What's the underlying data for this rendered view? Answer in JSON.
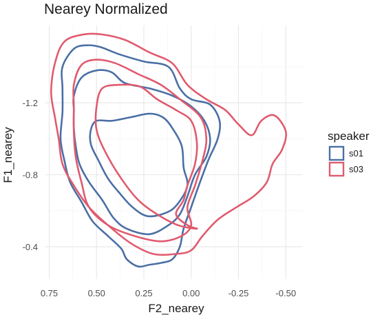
{
  "chart_data": {
    "type": "contour",
    "title": "Nearey Normalized",
    "xlabel": "F2_nearey",
    "ylabel": "F1_nearey",
    "x_reversed": true,
    "y_reversed": true,
    "xlim": [
      0.77,
      -0.59
    ],
    "ylim": [
      -1.63,
      -0.22
    ],
    "x_ticks": [
      0.75,
      0.5,
      0.25,
      0.0,
      -0.25,
      -0.5
    ],
    "x_tick_labels": [
      "0.75",
      "0.50",
      "0.25",
      "0.00",
      "-0.25",
      "-0.50"
    ],
    "y_ticks": [
      -1.2,
      -0.8,
      -0.4
    ],
    "y_tick_labels": [
      "-1.2",
      "-0.8",
      "-0.4"
    ],
    "grid": true,
    "legend": {
      "title": "speaker",
      "position": "right",
      "entries": [
        {
          "label": "s01",
          "color": "#4a6fa5"
        },
        {
          "label": "s03",
          "color": "#e05a6e"
        }
      ]
    },
    "series": [
      {
        "name": "s01",
        "color": "#4a6fa5",
        "contours": [
          [
            [
              0.53,
              -1.05
            ],
            [
              0.5,
              -1.1
            ],
            [
              0.42,
              -1.1
            ],
            [
              0.32,
              -1.12
            ],
            [
              0.22,
              -1.14
            ],
            [
              0.15,
              -1.12
            ],
            [
              0.1,
              -1.06
            ],
            [
              0.05,
              -0.96
            ],
            [
              0.04,
              -0.84
            ],
            [
              0.02,
              -0.74
            ],
            [
              0.07,
              -0.64
            ],
            [
              0.13,
              -0.59
            ],
            [
              0.23,
              -0.57
            ],
            [
              0.31,
              -0.62
            ],
            [
              0.38,
              -0.7
            ],
            [
              0.44,
              -0.78
            ],
            [
              0.49,
              -0.88
            ],
            [
              0.53,
              -0.97
            ]
          ],
          [
            [
              0.62,
              -1.24
            ],
            [
              0.58,
              -1.34
            ],
            [
              0.5,
              -1.38
            ],
            [
              0.42,
              -1.37
            ],
            [
              0.35,
              -1.31
            ],
            [
              0.22,
              -1.28
            ],
            [
              0.1,
              -1.24
            ],
            [
              0.0,
              -1.18
            ],
            [
              -0.07,
              -1.1
            ],
            [
              -0.1,
              -1.0
            ],
            [
              -0.08,
              -0.9
            ],
            [
              -0.02,
              -0.8
            ],
            [
              0.02,
              -0.68
            ],
            [
              0.06,
              -0.58
            ],
            [
              0.12,
              -0.52
            ],
            [
              0.22,
              -0.47
            ],
            [
              0.34,
              -0.5
            ],
            [
              0.41,
              -0.56
            ],
            [
              0.47,
              -0.66
            ],
            [
              0.54,
              -0.76
            ],
            [
              0.59,
              -0.86
            ],
            [
              0.61,
              -0.96
            ],
            [
              0.62,
              -1.06
            ],
            [
              0.62,
              -1.16
            ]
          ],
          [
            [
              0.68,
              -1.4
            ],
            [
              0.62,
              -1.5
            ],
            [
              0.55,
              -1.52
            ],
            [
              0.48,
              -1.51
            ],
            [
              0.38,
              -1.47
            ],
            [
              0.25,
              -1.43
            ],
            [
              0.12,
              -1.4
            ],
            [
              0.06,
              -1.28
            ],
            [
              0.0,
              -1.22
            ],
            [
              -0.1,
              -1.19
            ],
            [
              -0.15,
              -1.1
            ],
            [
              -0.14,
              -1.0
            ],
            [
              -0.09,
              -0.88
            ],
            [
              -0.04,
              -0.74
            ],
            [
              0.0,
              -0.62
            ],
            [
              0.04,
              -0.5
            ],
            [
              0.06,
              -0.4
            ],
            [
              0.1,
              -0.33
            ],
            [
              0.16,
              -0.31
            ],
            [
              0.22,
              -0.3
            ],
            [
              0.28,
              -0.29
            ],
            [
              0.34,
              -0.33
            ],
            [
              0.37,
              -0.39
            ],
            [
              0.44,
              -0.46
            ],
            [
              0.52,
              -0.54
            ],
            [
              0.58,
              -0.65
            ],
            [
              0.64,
              -0.76
            ],
            [
              0.67,
              -0.88
            ],
            [
              0.69,
              -1.0
            ],
            [
              0.68,
              -1.15
            ],
            [
              0.68,
              -1.28
            ]
          ]
        ]
      },
      {
        "name": "s03",
        "color": "#e05a6e",
        "contours": [
          [
            [
              0.5,
              -1.18
            ],
            [
              0.47,
              -1.28
            ],
            [
              0.38,
              -1.3
            ],
            [
              0.27,
              -1.29
            ],
            [
              0.18,
              -1.22
            ],
            [
              0.08,
              -1.16
            ],
            [
              0.0,
              -1.1
            ],
            [
              -0.03,
              -0.98
            ],
            [
              -0.02,
              -0.86
            ],
            [
              0.02,
              -0.74
            ],
            [
              0.04,
              -0.66
            ],
            [
              0.08,
              -0.58
            ],
            [
              0.02,
              -0.52
            ],
            [
              -0.03,
              -0.5
            ],
            [
              0.07,
              -0.52
            ],
            [
              0.18,
              -0.58
            ],
            [
              0.28,
              -0.66
            ],
            [
              0.37,
              -0.78
            ],
            [
              0.45,
              -0.92
            ],
            [
              0.5,
              -1.05
            ]
          ],
          [
            [
              0.62,
              -1.3
            ],
            [
              0.58,
              -1.41
            ],
            [
              0.5,
              -1.44
            ],
            [
              0.4,
              -1.42
            ],
            [
              0.28,
              -1.36
            ],
            [
              0.16,
              -1.3
            ],
            [
              0.06,
              -1.22
            ],
            [
              -0.05,
              -1.12
            ],
            [
              -0.08,
              -1.0
            ],
            [
              -0.06,
              -0.88
            ],
            [
              -0.02,
              -0.74
            ],
            [
              0.02,
              -0.62
            ],
            [
              0.0,
              -0.52
            ],
            [
              0.05,
              -0.46
            ],
            [
              0.16,
              -0.43
            ],
            [
              0.3,
              -0.46
            ],
            [
              0.44,
              -0.52
            ],
            [
              0.54,
              -0.62
            ],
            [
              0.58,
              -0.76
            ],
            [
              0.61,
              -0.9
            ],
            [
              0.62,
              -1.04
            ],
            [
              0.62,
              -1.18
            ]
          ],
          [
            [
              0.72,
              -1.42
            ],
            [
              0.67,
              -1.54
            ],
            [
              0.57,
              -1.58
            ],
            [
              0.47,
              -1.58
            ],
            [
              0.35,
              -1.55
            ],
            [
              0.22,
              -1.48
            ],
            [
              0.1,
              -1.42
            ],
            [
              0.02,
              -1.3
            ],
            [
              -0.08,
              -1.22
            ],
            [
              -0.18,
              -1.16
            ],
            [
              -0.25,
              -1.08
            ],
            [
              -0.32,
              -1.02
            ],
            [
              -0.37,
              -1.1
            ],
            [
              -0.44,
              -1.13
            ],
            [
              -0.5,
              -1.04
            ],
            [
              -0.48,
              -0.94
            ],
            [
              -0.43,
              -0.86
            ],
            [
              -0.4,
              -0.76
            ],
            [
              -0.33,
              -0.68
            ],
            [
              -0.24,
              -0.62
            ],
            [
              -0.14,
              -0.55
            ],
            [
              -0.06,
              -0.46
            ],
            [
              0.0,
              -0.38
            ],
            [
              0.08,
              -0.36
            ],
            [
              0.2,
              -0.36
            ],
            [
              0.32,
              -0.42
            ],
            [
              0.44,
              -0.52
            ],
            [
              0.54,
              -0.62
            ],
            [
              0.62,
              -0.74
            ],
            [
              0.68,
              -0.86
            ],
            [
              0.7,
              -1.0
            ],
            [
              0.72,
              -1.12
            ],
            [
              0.74,
              -1.26
            ]
          ]
        ]
      }
    ]
  }
}
